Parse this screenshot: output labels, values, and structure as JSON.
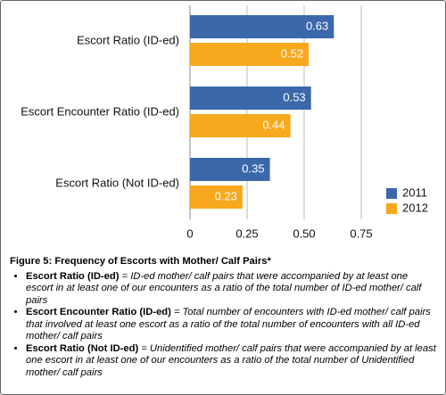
{
  "chart_data": {
    "type": "bar",
    "orientation": "horizontal",
    "categories": [
      "Escort Ratio (ID-ed)",
      "Escort Encounter Ratio (ID-ed)",
      "Escort Ratio (Not ID-ed)"
    ],
    "series": [
      {
        "name": "2011",
        "color": "#3b68aa",
        "values": [
          0.63,
          0.53,
          0.35
        ]
      },
      {
        "name": "2012",
        "color": "#f8a81c",
        "values": [
          0.52,
          0.44,
          0.23
        ]
      }
    ],
    "xlim": [
      0,
      0.75
    ],
    "xticks": [
      0,
      0.25,
      {
        "value": 0.5,
        "label": "0.50"
      },
      0.75
    ],
    "grid": true,
    "legend": "lower right"
  },
  "caption": {
    "title": "Figure 5: Frequency of Escorts with Mother/ Calf Pairs*",
    "items": [
      {
        "term": "Escort Ratio (ID-ed)",
        "definition": "= ID-ed mother/ calf pairs that were accompanied by at least one escort in at least one of our encounters as a ratio of the total number of ID-ed mother/ calf pairs"
      },
      {
        "term": "Escort Encounter Ratio (ID-ed)",
        "definition": "= Total number of encounters with ID-ed mother/ calf pairs that involved at least one escort as a ratio of the total number of encounters with all ID-ed mother/ calf pairs"
      },
      {
        "term": "Escort Ratio (Not ID-ed)",
        "definition": "= Unidentified mother/ calf pairs that were accompanied by at least one escort in at least one of our encounters as a ratio of the total number of Unidentified mother/ calf pairs"
      }
    ]
  }
}
